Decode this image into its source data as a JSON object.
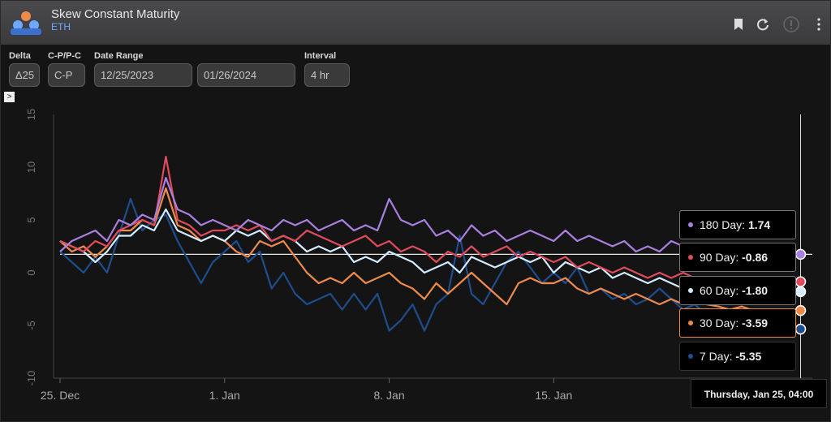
{
  "header": {
    "title": "Skew Constant Maturity",
    "subtitle": "ETH",
    "icons": [
      "bookmark-icon",
      "refresh-icon",
      "info-icon",
      "more-vert-icon"
    ]
  },
  "controls": {
    "delta": {
      "label": "Delta",
      "value": "Δ25"
    },
    "cp": {
      "label": "C-P/P-C",
      "value": "C-P"
    },
    "date_range": {
      "label": "Date Range",
      "start": "12/25/2023",
      "end": "01/26/2024"
    },
    "interval": {
      "label": "Interval",
      "value": "4 hr"
    },
    "expander": ">"
  },
  "tooltip": {
    "time": "Thursday, Jan 25, 04:00",
    "rows": [
      {
        "label": "180 Day:",
        "value": "1.74"
      },
      {
        "label": "90 Day:",
        "value": "-0.86"
      },
      {
        "label": "60 Day:",
        "value": "-1.80"
      },
      {
        "label": "30 Day:",
        "value": "-3.59"
      },
      {
        "label": "7 Day:",
        "value": "-5.35"
      }
    ]
  },
  "colors": {
    "d180": "#a97fe0",
    "d90": "#e04a5a",
    "d60": "#d4ecff",
    "d30": "#f08a4b",
    "d7": "#1e4d8c",
    "background": "#141414",
    "header": "#434345"
  },
  "chart_data": {
    "type": "line",
    "x_axis": {
      "ticks": [
        "25. Dec",
        "1. Jan",
        "8. Jan",
        "15. Jan"
      ],
      "tick_days": [
        0,
        7,
        14,
        21
      ],
      "range_days": [
        0,
        32
      ]
    },
    "y_axis": {
      "ticks": [
        "15",
        "10",
        "5",
        "0",
        "-5",
        "-10"
      ],
      "ylim": [
        -10,
        15
      ]
    },
    "reference_line": 1.74,
    "series": [
      {
        "name": "180 Day",
        "color": "#a97fe0",
        "x": [
          0,
          0.5,
          1,
          1.5,
          2,
          2.5,
          3,
          3.5,
          4,
          4.5,
          5,
          5.5,
          6,
          6.5,
          7,
          7.5,
          8,
          8.5,
          9,
          9.5,
          10,
          10.5,
          11,
          11.5,
          12,
          12.5,
          13,
          13.5,
          14,
          14.5,
          15,
          15.5,
          16,
          16.5,
          17,
          17.5,
          18,
          18.5,
          19,
          19.5,
          20,
          20.5,
          21,
          21.5,
          22,
          22.5,
          23,
          23.5,
          24,
          24.5,
          25,
          25.5,
          26,
          26.5,
          27,
          27.5,
          28,
          28.5,
          29,
          29.5,
          30,
          30.5,
          31,
          31.5
        ],
        "y": [
          2,
          3,
          3.5,
          4,
          3,
          5,
          4.5,
          5.5,
          5,
          9,
          6,
          5.5,
          4.5,
          5,
          4.5,
          4,
          5,
          4.5,
          4,
          5,
          4.5,
          5,
          4,
          4.5,
          5,
          4,
          4.5,
          4,
          7,
          5,
          4.5,
          5,
          3.5,
          4,
          3,
          4.5,
          3.5,
          4,
          3,
          3.5,
          4,
          3.5,
          3,
          4,
          3,
          3.5,
          3,
          2.5,
          3,
          2,
          2.5,
          2,
          3,
          2.5,
          2,
          2.5,
          1.5,
          1,
          1.5,
          1,
          1.5,
          1.5,
          1.74,
          1.74
        ]
      },
      {
        "name": "90 Day",
        "color": "#e04a5a",
        "x": [
          0,
          0.5,
          1,
          1.5,
          2,
          2.5,
          3,
          3.5,
          4,
          4.5,
          5,
          5.5,
          6,
          6.5,
          7,
          7.5,
          8,
          8.5,
          9,
          9.5,
          10,
          10.5,
          11,
          11.5,
          12,
          12.5,
          13,
          13.5,
          14,
          14.5,
          15,
          15.5,
          16,
          16.5,
          17,
          17.5,
          18,
          18.5,
          19,
          19.5,
          20,
          20.5,
          21,
          21.5,
          22,
          22.5,
          23,
          23.5,
          24,
          24.5,
          25,
          25.5,
          26,
          26.5,
          27,
          27.5,
          28,
          28.5,
          29,
          29.5,
          30,
          30.5,
          31,
          31.5
        ],
        "y": [
          3,
          2.5,
          2,
          3,
          2.5,
          4,
          4.5,
          5,
          4.5,
          11,
          5,
          4.5,
          3.5,
          4,
          4,
          4.5,
          4,
          4.5,
          3,
          3.5,
          3,
          4,
          3.5,
          3,
          2.5,
          3,
          3.5,
          2.5,
          3,
          2,
          2.5,
          2,
          1,
          2,
          1.5,
          2.5,
          1.5,
          2,
          2.5,
          1.5,
          2,
          1.5,
          1,
          1.5,
          0.5,
          1,
          0.5,
          0,
          0.5,
          0,
          -0.5,
          0,
          -0.5,
          0,
          -0.5,
          -1,
          -0.5,
          -1,
          -0.5,
          -1,
          -0.8,
          -0.9,
          -0.86,
          -0.86
        ]
      },
      {
        "name": "60 Day",
        "color": "#d4ecff",
        "x": [
          0,
          0.5,
          1,
          1.5,
          2,
          2.5,
          3,
          3.5,
          4,
          4.5,
          5,
          5.5,
          6,
          6.5,
          7,
          7.5,
          8,
          8.5,
          9,
          9.5,
          10,
          10.5,
          11,
          11.5,
          12,
          12.5,
          13,
          13.5,
          14,
          14.5,
          15,
          15.5,
          16,
          16.5,
          17,
          17.5,
          18,
          18.5,
          19,
          19.5,
          20,
          20.5,
          21,
          21.5,
          22,
          22.5,
          23,
          23.5,
          24,
          24.5,
          25,
          25.5,
          26,
          26.5,
          27,
          27.5,
          28,
          28.5,
          29,
          29.5,
          30,
          30.5,
          31,
          31.5
        ],
        "y": [
          3,
          2.5,
          2,
          1,
          2,
          3.5,
          3.5,
          4.5,
          4,
          6,
          4,
          3.5,
          3,
          3.5,
          3,
          4,
          3.5,
          4,
          3,
          3.5,
          3,
          2,
          2.5,
          2,
          2.5,
          1,
          1.5,
          1,
          2,
          1.5,
          1,
          0,
          0.5,
          1,
          0,
          1.5,
          1,
          0.5,
          1,
          1.5,
          1,
          1.5,
          0,
          1,
          0.5,
          0,
          0.5,
          -0.5,
          0,
          -0.5,
          -1,
          -0.5,
          -1,
          -1.5,
          -1,
          -1.5,
          -1.2,
          -1.6,
          -1.5,
          -1.8,
          -1.7,
          -1.8,
          -1.8,
          -1.8
        ]
      },
      {
        "name": "30 Day",
        "color": "#f08a4b",
        "x": [
          0,
          0.5,
          1,
          1.5,
          2,
          2.5,
          3,
          3.5,
          4,
          4.5,
          5,
          5.5,
          6,
          6.5,
          7,
          7.5,
          8,
          8.5,
          9,
          9.5,
          10,
          10.5,
          11,
          11.5,
          12,
          12.5,
          13,
          13.5,
          14,
          14.5,
          15,
          15.5,
          16,
          16.5,
          17,
          17.5,
          18,
          18.5,
          19,
          19.5,
          20,
          20.5,
          21,
          21.5,
          22,
          22.5,
          23,
          23.5,
          24,
          24.5,
          25,
          25.5,
          26,
          26.5,
          27,
          27.5,
          28,
          28.5,
          29,
          29.5,
          30,
          30.5,
          31,
          31.5
        ],
        "y": [
          3,
          2,
          2.5,
          1.5,
          2.5,
          4,
          4,
          5,
          4.5,
          8,
          4.5,
          4,
          3,
          3.5,
          3,
          2,
          1.5,
          3,
          2.5,
          3,
          1.5,
          0,
          -1,
          -0.5,
          -1,
          0,
          -1,
          -0.5,
          0,
          -1,
          -1.5,
          -2.5,
          -1,
          -2,
          -1,
          0,
          -1,
          -2,
          -3,
          -1,
          -0.5,
          -1,
          -1,
          -0.5,
          -1.5,
          -2,
          -1.5,
          -2,
          -2.5,
          -2,
          -2.5,
          -3,
          -2.5,
          -3,
          -2.5,
          -3,
          -3.2,
          -3.5,
          -3.2,
          -3.6,
          -3.5,
          -3.6,
          -3.59,
          -3.59
        ]
      },
      {
        "name": "7 Day",
        "color": "#1e4d8c",
        "x": [
          0,
          0.5,
          1,
          1.5,
          2,
          2.5,
          3,
          3.5,
          4,
          4.5,
          5,
          5.5,
          6,
          6.5,
          7,
          7.5,
          8,
          8.5,
          9,
          9.5,
          10,
          10.5,
          11,
          11.5,
          12,
          12.5,
          13,
          13.5,
          14,
          14.5,
          15,
          15.5,
          16,
          16.5,
          17,
          17.5,
          18,
          18.5,
          19,
          19.5,
          20,
          20.5,
          21,
          21.5,
          22,
          22.5,
          23,
          23.5,
          24,
          24.5,
          25,
          25.5,
          26,
          26.5,
          27,
          27.5,
          28,
          28.5,
          29,
          29.5,
          30,
          30.5,
          31,
          31.5
        ],
        "y": [
          2,
          1,
          0,
          1.5,
          0,
          3.5,
          7,
          4,
          5,
          5.5,
          3,
          1,
          -1,
          1,
          2,
          3,
          1,
          2,
          -1.5,
          0,
          -2,
          -3,
          -2.5,
          -2,
          -3.5,
          -2,
          -3.5,
          -2,
          -5.5,
          -4.5,
          -3,
          -5.5,
          -3,
          -2,
          3.5,
          -2,
          -3,
          -1,
          1,
          2,
          0.5,
          -1,
          0,
          -1,
          0.5,
          -2,
          -1.5,
          -2.5,
          -2,
          -3,
          -2.5,
          -1.5,
          -2.5,
          -3.5,
          -3,
          -4,
          -3.5,
          -4.5,
          -4,
          -5,
          -4.5,
          -5.2,
          -5.35,
          -5.35
        ]
      }
    ]
  }
}
